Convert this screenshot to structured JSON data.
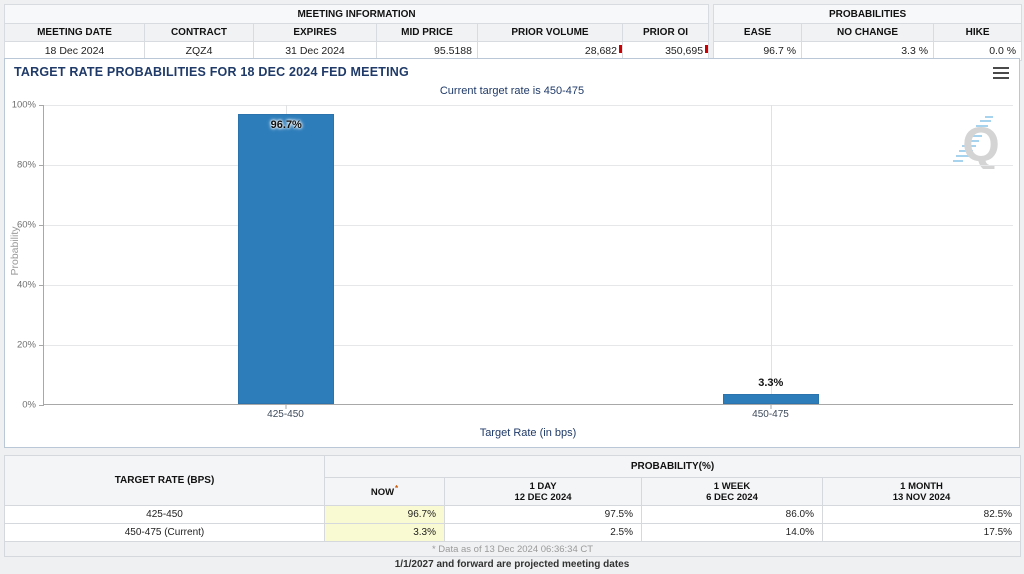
{
  "meeting_info": {
    "title": "MEETING INFORMATION",
    "columns": [
      "MEETING DATE",
      "CONTRACT",
      "EXPIRES",
      "MID PRICE",
      "PRIOR VOLUME",
      "PRIOR OI"
    ],
    "values": [
      "18 Dec 2024",
      "ZQZ4",
      "31 Dec 2024",
      "95.5188",
      "28,682",
      "350,695"
    ]
  },
  "probabilities_panel": {
    "title": "PROBABILITIES",
    "columns": [
      "EASE",
      "NO CHANGE",
      "HIKE"
    ],
    "values": [
      "96.7 %",
      "3.3 %",
      "0.0 %"
    ]
  },
  "chart": {
    "title": "TARGET RATE PROBABILITIES FOR 18 DEC 2024 FED MEETING",
    "subtitle": "Current target rate is 450-475",
    "watermark_letter": "Q"
  },
  "chart_data": {
    "type": "bar",
    "title": "TARGET RATE PROBABILITIES FOR 18 DEC 2024 FED MEETING",
    "subtitle": "Current target rate is 450-475",
    "categories": [
      "425-450",
      "450-475"
    ],
    "values": [
      96.7,
      3.3
    ],
    "bar_labels": [
      "96.7%",
      "3.3%"
    ],
    "xlabel": "Target Rate (in bps)",
    "ylabel": "Probability",
    "ylim": [
      0,
      100
    ],
    "yticks": [
      "0%",
      "20%",
      "40%",
      "60%",
      "80%",
      "100%"
    ],
    "grid": true,
    "legend": "none",
    "bar_color": "#2d7dbb"
  },
  "bottom_table": {
    "rate_header": "TARGET RATE (BPS)",
    "group_header": "PROBABILITY(%)",
    "now_label": "NOW",
    "now_asterisk": "*",
    "period_headers": [
      {
        "line1": "1 DAY",
        "line2": "12 DEC 2024"
      },
      {
        "line1": "1 WEEK",
        "line2": "6 DEC 2024"
      },
      {
        "line1": "1 MONTH",
        "line2": "13 NOV 2024"
      }
    ],
    "rows": [
      {
        "rate": "425-450",
        "now": "96.7%",
        "day": "97.5%",
        "week": "86.0%",
        "month": "82.5%"
      },
      {
        "rate": "450-475 (Current)",
        "now": "3.3%",
        "day": "2.5%",
        "week": "14.0%",
        "month": "17.5%"
      }
    ],
    "footnote": "* Data as of 13 Dec 2024 06:36:34 CT"
  },
  "page": {
    "projection_note": "1/1/2027 and forward are projected meeting dates"
  },
  "colors": {
    "bar": "#2d7dbb",
    "navy_text": "#1f3a68",
    "now_highlight": "#fafad2",
    "flash_red": "#cc0000",
    "watermark_gray": "#d4d4d4",
    "watermark_blue": "#a7d3ee"
  }
}
